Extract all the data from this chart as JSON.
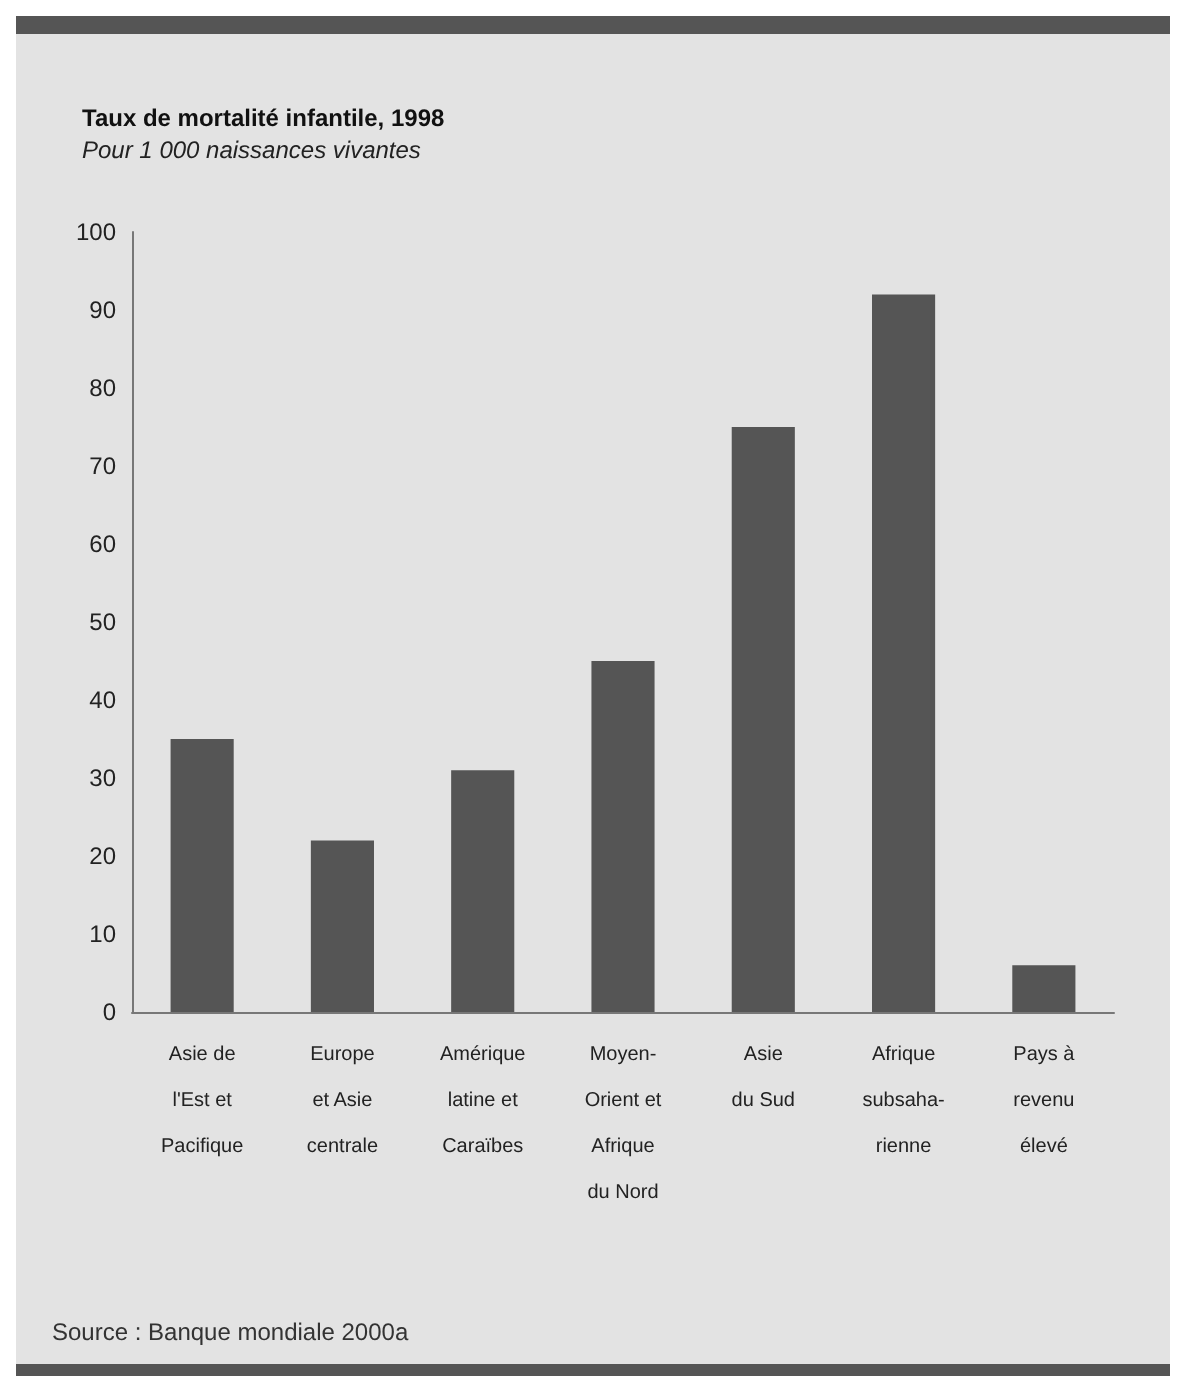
{
  "chart_data": {
    "type": "bar",
    "title": "Taux de mortalité infantile, 1998",
    "subtitle": "Pour 1 000 naissances vivantes",
    "categories": [
      "Asie de\nl'Est et\nPacifique",
      "Europe\net Asie\ncentrale",
      "Amérique\nlatine et\nCaraïbes",
      "Moyen-\nOrient et\nAfrique\ndu Nord",
      "Asie\ndu Sud",
      "Afrique\nsubsaha-\nrienne",
      "Pays à\nrevenu\nélevé"
    ],
    "values": [
      35,
      22,
      31,
      45,
      75,
      92,
      6
    ],
    "color": "#555555",
    "ylim": [
      0,
      100
    ],
    "yticks": [
      0,
      10,
      20,
      30,
      40,
      50,
      60,
      70,
      80,
      90,
      100
    ],
    "grid": false,
    "annotations": [
      "Source : Banque mondiale 2000a"
    ]
  }
}
